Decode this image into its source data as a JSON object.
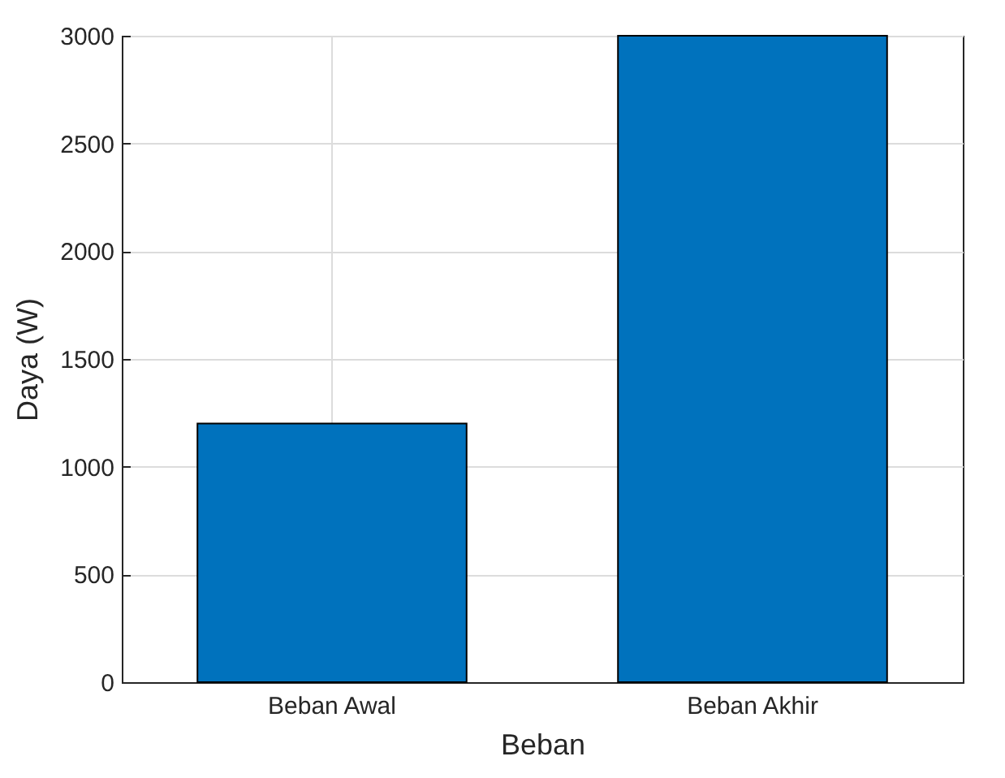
{
  "chart_data": {
    "type": "bar",
    "xlabel": "Beban",
    "ylabel": "Daya (W)",
    "categories": [
      "Beban Awal",
      "Beban Akhir"
    ],
    "values": [
      1200,
      3000
    ],
    "color": "#0072bd",
    "ylim": [
      0,
      3000
    ],
    "yticks": [
      0,
      500,
      1000,
      1500,
      2000,
      2500,
      3000
    ],
    "grid": true
  }
}
